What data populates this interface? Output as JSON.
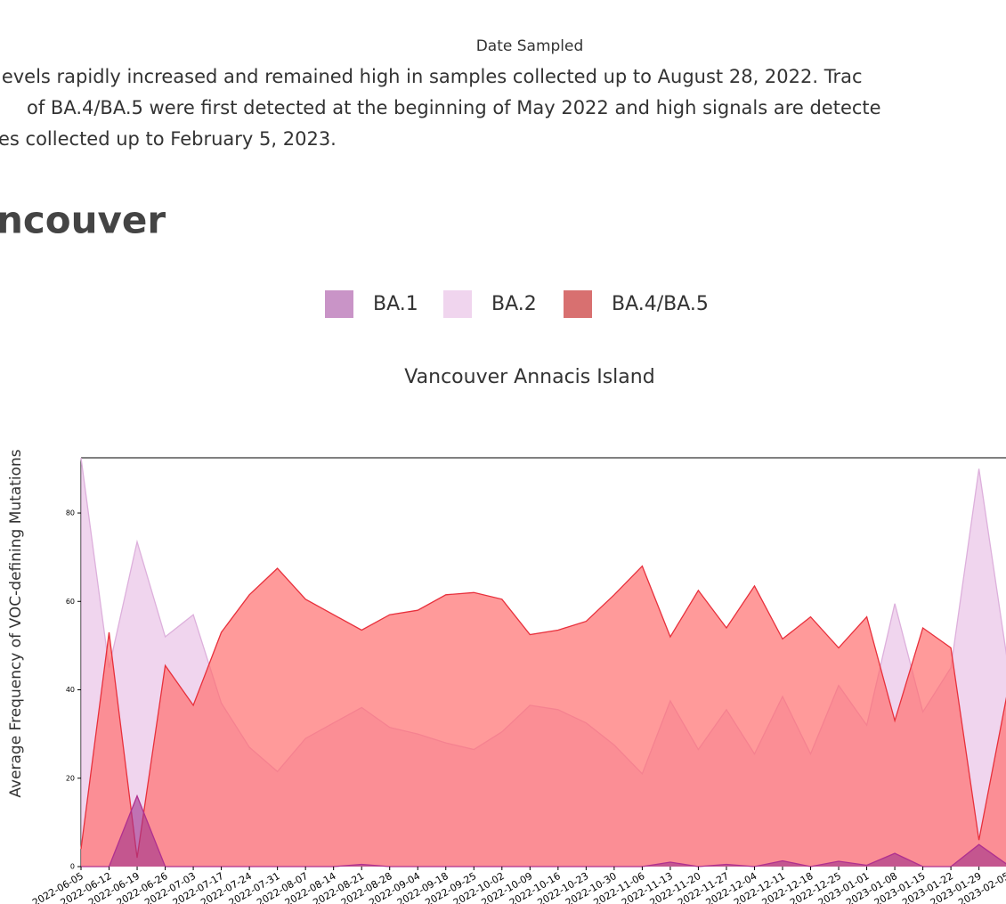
{
  "page": {
    "prev_axis_label": "Date Sampled",
    "paragraph": [
      "levels rapidly increased and remained high in samples collected up to August 28, 2022. Trac",
      "of BA.4/BA.5 were first detected at the beginning of May 2022 and high signals are detecte",
      "es collected up to February 5, 2023."
    ],
    "heading": "ncouver"
  },
  "chart_data": {
    "type": "area",
    "title": "Vancouver Annacis Island",
    "y_label": "Average Frequency of VOC-defining Mutations",
    "categories": [
      "2022-06-05",
      "2022-06-12",
      "2022-06-19",
      "2022-06-26",
      "2022-07-03",
      "2022-07-17",
      "2022-07-24",
      "2022-07-31",
      "2022-08-07",
      "2022-08-14",
      "2022-08-21",
      "2022-08-28",
      "2022-09-04",
      "2022-09-18",
      "2022-09-25",
      "2022-10-02",
      "2022-10-09",
      "2022-10-16",
      "2022-10-23",
      "2022-10-30",
      "2022-11-06",
      "2022-11-13",
      "2022-11-20",
      "2022-11-27",
      "2022-12-04",
      "2022-12-11",
      "2022-12-18",
      "2022-12-25",
      "2023-01-01",
      "2023-01-08",
      "2023-01-15",
      "2023-01-22",
      "2023-01-29",
      "2023-02-05"
    ],
    "series": [
      {
        "name": "BA.1",
        "color": "#c994c7",
        "line_color": "#b0308f",
        "values": [
          0,
          0,
          16,
          0,
          0,
          0,
          0,
          0,
          0,
          0,
          0.5,
          0,
          0,
          0,
          0,
          0,
          0,
          0,
          0,
          0,
          0,
          1,
          0,
          0.5,
          0,
          1.3,
          0,
          1.2,
          0.3,
          3,
          0,
          0,
          5,
          0.5
        ]
      },
      {
        "name": "BA.2",
        "color": "#f0d5ee",
        "line_color": "#ddb0dc",
        "values": [
          92.5,
          45,
          73.5,
          52,
          57,
          37,
          27,
          21.5,
          29,
          32.5,
          36,
          31.5,
          30,
          28,
          26.5,
          30.5,
          36.5,
          35.5,
          32.5,
          27.5,
          21,
          37.5,
          26.5,
          35.5,
          25.5,
          38.5,
          25.5,
          41,
          32,
          59.5,
          35,
          45,
          90,
          47
        ]
      },
      {
        "name": "BA.4/BA.5",
        "color": "#d87070",
        "line_color": "#e8303c",
        "values": [
          4,
          53,
          2,
          45.5,
          36.5,
          53,
          61.5,
          67.5,
          60.5,
          57,
          53.5,
          57,
          58,
          61.5,
          62,
          60.5,
          52.5,
          53.5,
          55.5,
          61.5,
          68,
          52,
          62.5,
          54,
          63.5,
          51.5,
          56.5,
          49.5,
          56.5,
          33,
          54,
          49.5,
          6,
          39
        ]
      }
    ],
    "ylim": [
      0,
      92.5
    ],
    "yticks": [
      0,
      20,
      40,
      60,
      80
    ]
  }
}
